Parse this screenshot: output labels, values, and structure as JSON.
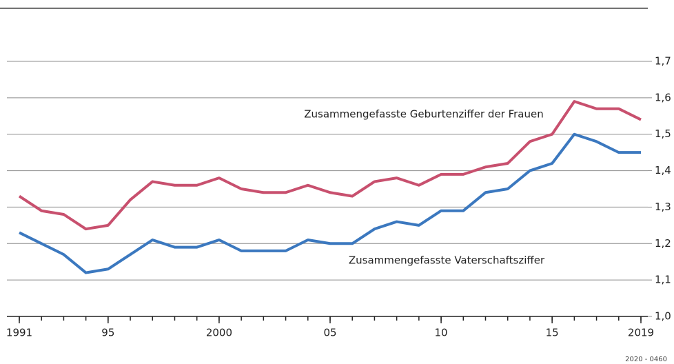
{
  "chart_data": {
    "type": "line",
    "x": [
      1991,
      1992,
      1993,
      1994,
      1995,
      1996,
      1997,
      1998,
      1999,
      2000,
      2001,
      2002,
      2003,
      2004,
      2005,
      2006,
      2007,
      2008,
      2009,
      2010,
      2011,
      2012,
      2013,
      2014,
      2015,
      2016,
      2017,
      2018,
      2019
    ],
    "series": [
      {
        "name": "Zusammengefasste Geburtenziffer der Frauen",
        "color": "#c8506e",
        "values": [
          1.33,
          1.29,
          1.28,
          1.24,
          1.25,
          1.32,
          1.37,
          1.36,
          1.36,
          1.38,
          1.35,
          1.34,
          1.34,
          1.36,
          1.34,
          1.33,
          1.37,
          1.38,
          1.36,
          1.39,
          1.39,
          1.41,
          1.42,
          1.48,
          1.5,
          1.59,
          1.57,
          1.57,
          1.54
        ]
      },
      {
        "name": "Zusammengefasste Vaterschaftsziffer",
        "color": "#3b78bf",
        "values": [
          1.23,
          1.2,
          1.17,
          1.12,
          1.13,
          1.17,
          1.21,
          1.19,
          1.19,
          1.21,
          1.18,
          1.18,
          1.18,
          1.21,
          1.2,
          1.2,
          1.24,
          1.26,
          1.25,
          1.29,
          1.29,
          1.34,
          1.35,
          1.4,
          1.42,
          1.5,
          1.48,
          1.45,
          1.45
        ]
      }
    ],
    "xlim": [
      1991,
      2019
    ],
    "xticks": [
      1991,
      {
        "value": 1995,
        "label": "95"
      },
      2000,
      {
        "value": 2005,
        "label": "05"
      },
      {
        "value": 2010,
        "label": "10"
      },
      {
        "value": 2015,
        "label": "15"
      },
      2019
    ],
    "ylim": [
      1.0,
      1.7
    ],
    "yticks": [
      {
        "value": 1.0,
        "label": "1,0"
      },
      {
        "value": 1.1,
        "label": "1,1"
      },
      {
        "value": 1.2,
        "label": "1,2"
      },
      {
        "value": 1.3,
        "label": "1,3"
      },
      {
        "value": 1.4,
        "label": "1,4"
      },
      {
        "value": 1.5,
        "label": "1,5"
      },
      {
        "value": 1.6,
        "label": "1,6"
      },
      {
        "value": 1.7,
        "label": "1,7"
      }
    ],
    "grid": true,
    "source_code": "2020 - 0460"
  }
}
